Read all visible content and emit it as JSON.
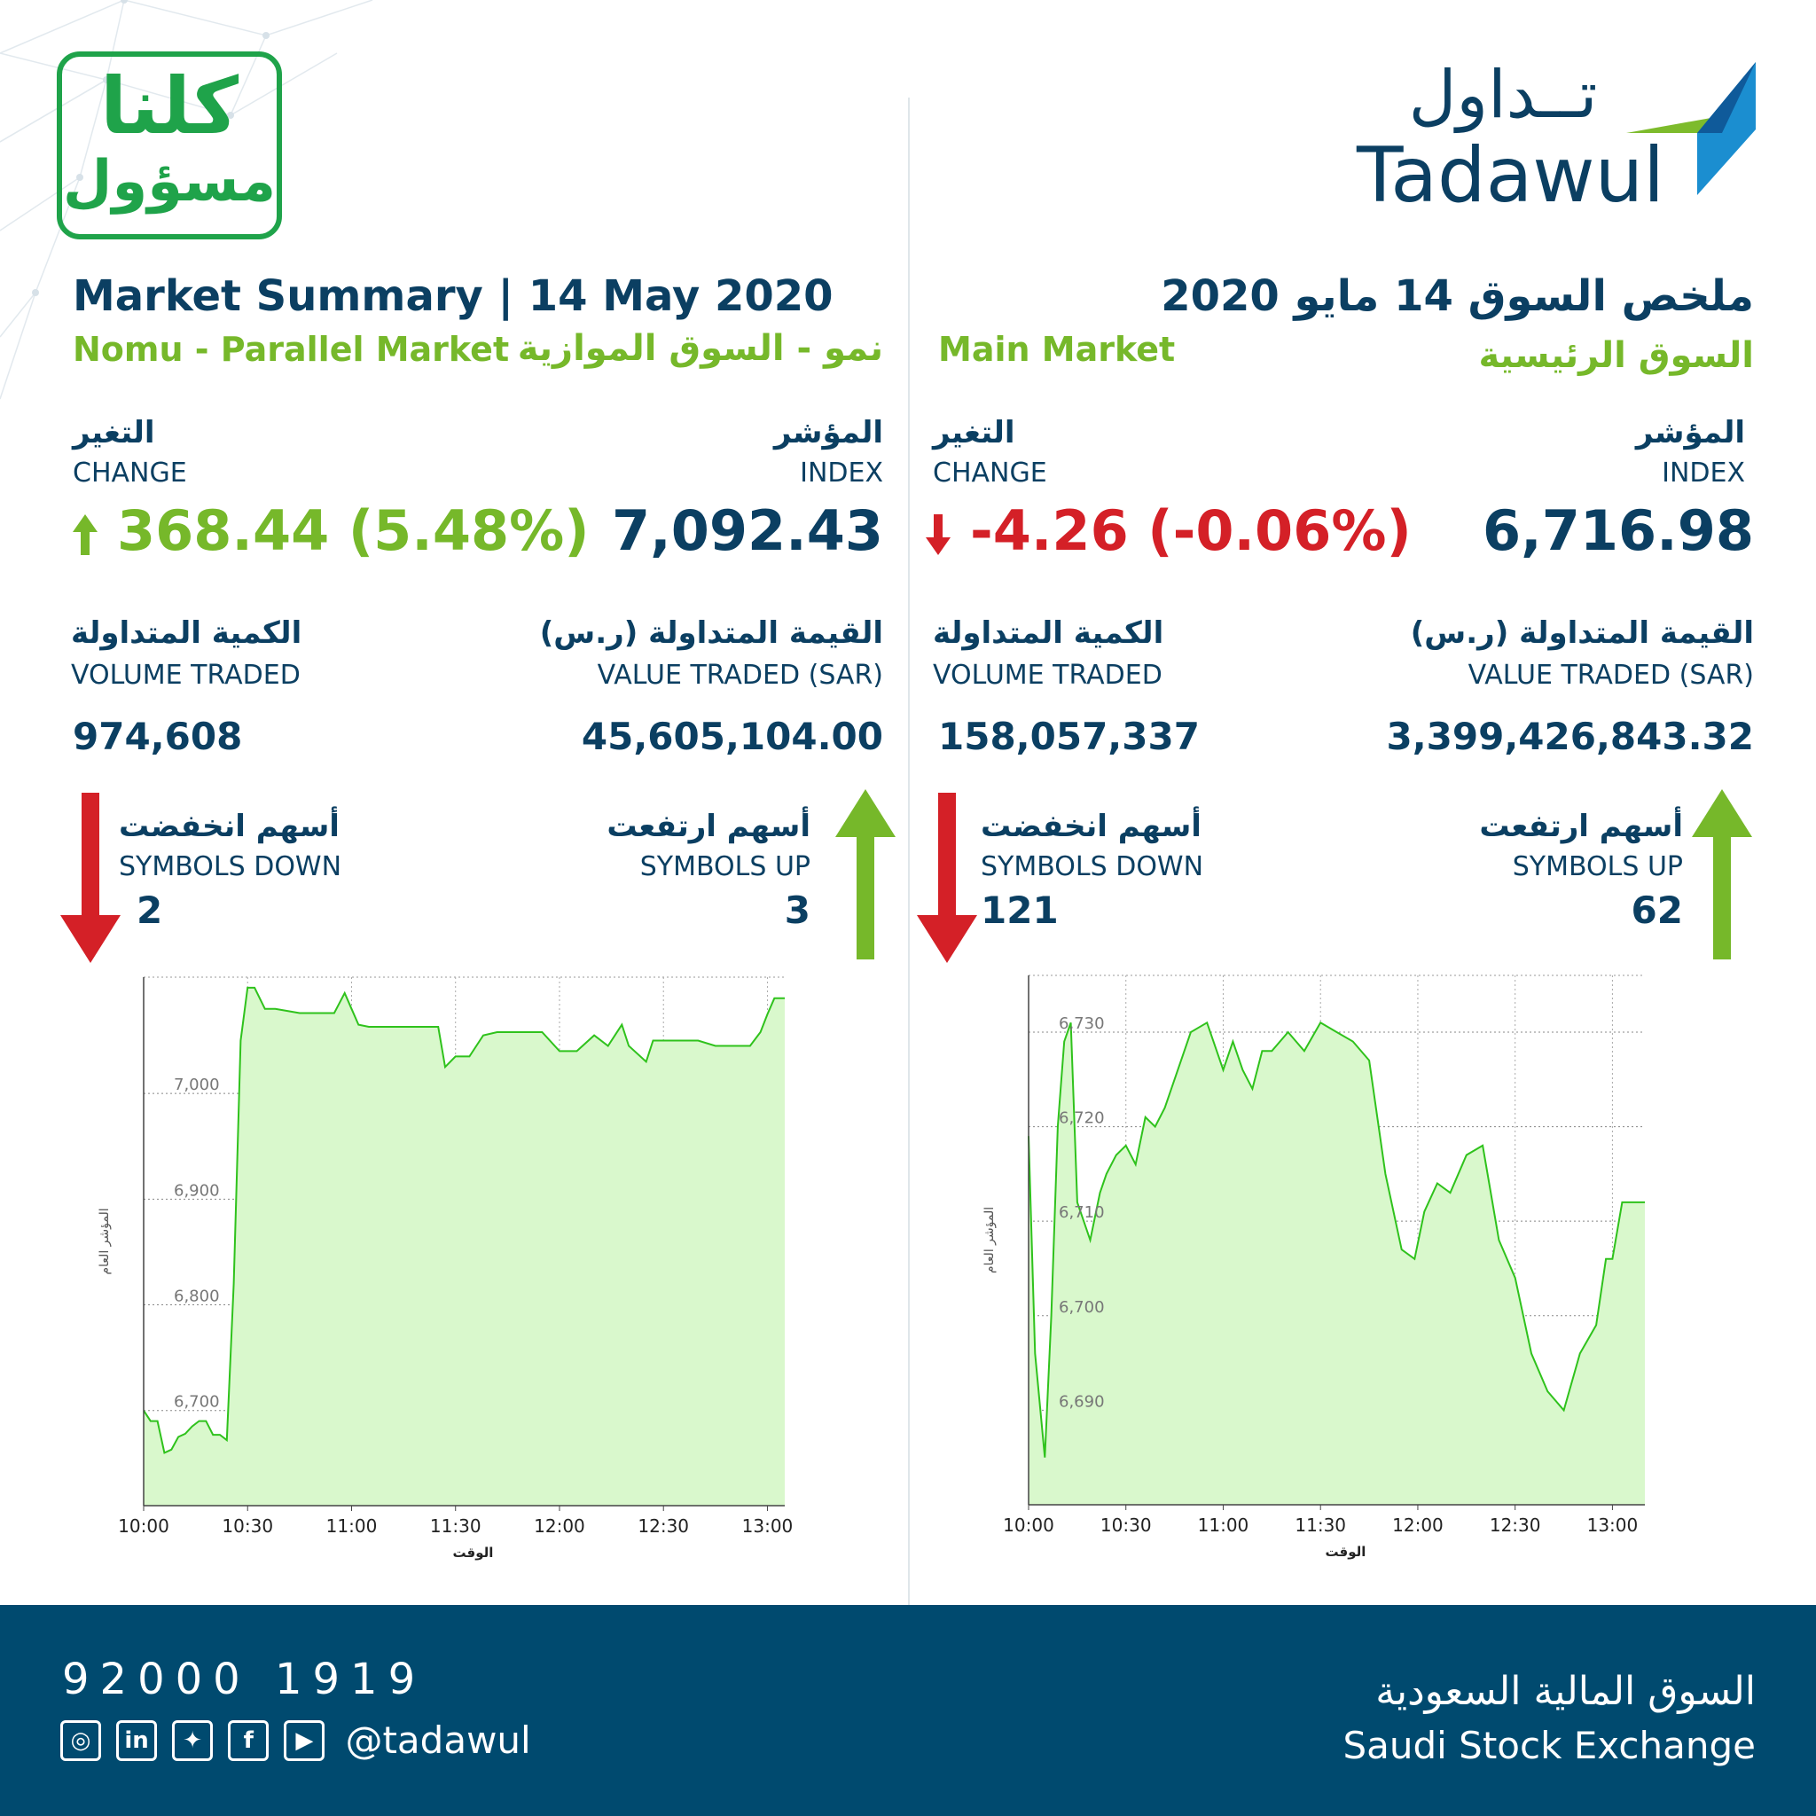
{
  "campaign_badge": {
    "line1": "كلنا",
    "line2": "مسؤول"
  },
  "logo": {
    "arabic": "تــداول",
    "latin": "Tadawul"
  },
  "left_panel": {
    "title": "Market Summary | 14 May 2020",
    "market_en": "Nomu - Parallel Market",
    "market_ar": "نمو - السوق الموازية",
    "change_ar": "التغير",
    "change_en": "CHANGE",
    "change_value": "368.44 (5.48%)",
    "index_ar": "المؤشر",
    "index_en": "INDEX",
    "index_value": "7,092.43",
    "volume_ar": "الكمية المتداولة",
    "volume_en": "VOLUME TRADED",
    "volume_value": "974,608",
    "value_ar": "القيمة المتداولة (ر.س)",
    "value_en": "VALUE TRADED (SAR)",
    "value_value": "45,605,104.00",
    "down_ar": "أسهم انخفضت",
    "down_en": "SYMBOLS DOWN",
    "down_value": "2",
    "up_ar": "أسهم ارتفعت",
    "up_en": "SYMBOLS UP",
    "up_value": "3"
  },
  "right_panel": {
    "title": "ملخص السوق 14 مايو 2020",
    "market_en": "Main Market",
    "market_ar": "السوق الرئيسية",
    "change_ar": "التغير",
    "change_en": "CHANGE",
    "change_value": "-4.26 (-0.06%)",
    "index_ar": "المؤشر",
    "index_en": "INDEX",
    "index_value": "6,716.98",
    "volume_ar": "الكمية المتداولة",
    "volume_en": "VOLUME TRADED",
    "volume_value": "158,057,337",
    "value_ar": "القيمة المتداولة (ر.س)",
    "value_en": "VALUE TRADED (SAR)",
    "value_value": "3,399,426,843.32",
    "down_ar": "أسهم انخفضت",
    "down_en": "SYMBOLS DOWN",
    "down_value": "121",
    "up_ar": "أسهم ارتفعت",
    "up_en": "SYMBOLS UP",
    "up_value": "62"
  },
  "footer": {
    "phone": "92000 1919",
    "handle": "@tadawul",
    "exchange_ar": "السوق المالية السعودية",
    "exchange_en": "Saudi Stock Exchange",
    "social_icons": [
      "instagram-icon",
      "linkedin-icon",
      "twitter-icon",
      "facebook-icon",
      "youtube-icon"
    ]
  },
  "colors": {
    "navy": "#0b3f62",
    "green": "#76b82a",
    "red": "#d42027",
    "fill": "#d9f8cc",
    "line": "#2fc21c"
  },
  "chart_data": [
    {
      "type": "area",
      "ylabel": "المؤشر العام",
      "xlabel": "الوقت",
      "ylim": [
        6610,
        7110
      ],
      "xlim": [
        "10:00",
        "13:05"
      ],
      "yticks": [
        6700,
        6800,
        6900,
        7000
      ],
      "ytick_labels": [
        "6,700",
        "6,800",
        "6,900",
        "7,000"
      ],
      "xticks": [
        "10:00",
        "10:30",
        "11:00",
        "11:30",
        "12:00",
        "12:30",
        "13:00"
      ],
      "grid": true,
      "x": [
        "10:00",
        "10:02",
        "10:04",
        "10:06",
        "10:08",
        "10:10",
        "10:12",
        "10:14",
        "10:16",
        "10:18",
        "10:20",
        "10:22",
        "10:24",
        "10:26",
        "10:28",
        "10:30",
        "10:32",
        "10:35",
        "10:38",
        "10:45",
        "10:50",
        "10:55",
        "10:58",
        "11:00",
        "11:02",
        "11:05",
        "11:15",
        "11:25",
        "11:27",
        "11:30",
        "11:34",
        "11:38",
        "11:42",
        "11:46",
        "11:50",
        "11:55",
        "12:00",
        "12:05",
        "12:10",
        "12:14",
        "12:18",
        "12:20",
        "12:25",
        "12:27",
        "12:30",
        "12:40",
        "12:45",
        "12:50",
        "12:55",
        "12:58",
        "13:00",
        "13:02",
        "13:05"
      ],
      "values": [
        6700,
        6690,
        6690,
        6660,
        6663,
        6675,
        6678,
        6685,
        6690,
        6690,
        6677,
        6677,
        6672,
        6820,
        7050,
        7100,
        7100,
        7080,
        7080,
        7076,
        7076,
        7076,
        7095,
        7080,
        7065,
        7063,
        7063,
        7063,
        7025,
        7035,
        7035,
        7055,
        7058,
        7058,
        7058,
        7058,
        7040,
        7040,
        7055,
        7045,
        7065,
        7045,
        7030,
        7050,
        7050,
        7050,
        7045,
        7045,
        7045,
        7058,
        7075,
        7090,
        7090
      ]
    },
    {
      "type": "area",
      "ylabel": "المؤشر العام",
      "xlabel": "الوقت",
      "ylim": [
        6680,
        6736
      ],
      "xlim": [
        "10:00",
        "13:10"
      ],
      "yticks": [
        6690,
        6700,
        6710,
        6720,
        6730
      ],
      "ytick_labels": [
        "6,690",
        "6,700",
        "6,710",
        "6,720",
        "6,730"
      ],
      "xticks": [
        "10:00",
        "10:30",
        "11:00",
        "11:30",
        "12:00",
        "12:30",
        "13:00"
      ],
      "grid": true,
      "x": [
        "10:00",
        "10:02",
        "10:05",
        "10:07",
        "10:09",
        "10:11",
        "10:13",
        "10:15",
        "10:17",
        "10:19",
        "10:22",
        "10:24",
        "10:27",
        "10:30",
        "10:33",
        "10:36",
        "10:39",
        "10:42",
        "10:45",
        "10:50",
        "10:55",
        "10:58",
        "11:00",
        "11:03",
        "11:06",
        "11:09",
        "11:12",
        "11:15",
        "11:20",
        "11:25",
        "11:30",
        "11:35",
        "11:40",
        "11:45",
        "11:50",
        "11:55",
        "11:59",
        "12:02",
        "12:06",
        "12:10",
        "12:15",
        "12:20",
        "12:25",
        "12:30",
        "12:35",
        "12:40",
        "12:45",
        "12:50",
        "12:55",
        "12:58",
        "13:00",
        "13:03",
        "13:10"
      ],
      "values": [
        6719,
        6696,
        6685,
        6700,
        6720,
        6729,
        6731,
        6712,
        6710,
        6708,
        6713,
        6715,
        6717,
        6718,
        6716,
        6721,
        6720,
        6722,
        6725,
        6730,
        6731,
        6728,
        6726,
        6729,
        6726,
        6724,
        6728,
        6728,
        6730,
        6728,
        6731,
        6730,
        6729,
        6727,
        6715,
        6707,
        6706,
        6711,
        6714,
        6713,
        6717,
        6718,
        6708,
        6704,
        6696,
        6692,
        6690,
        6696,
        6699,
        6706,
        6706,
        6712,
        6712
      ]
    }
  ]
}
